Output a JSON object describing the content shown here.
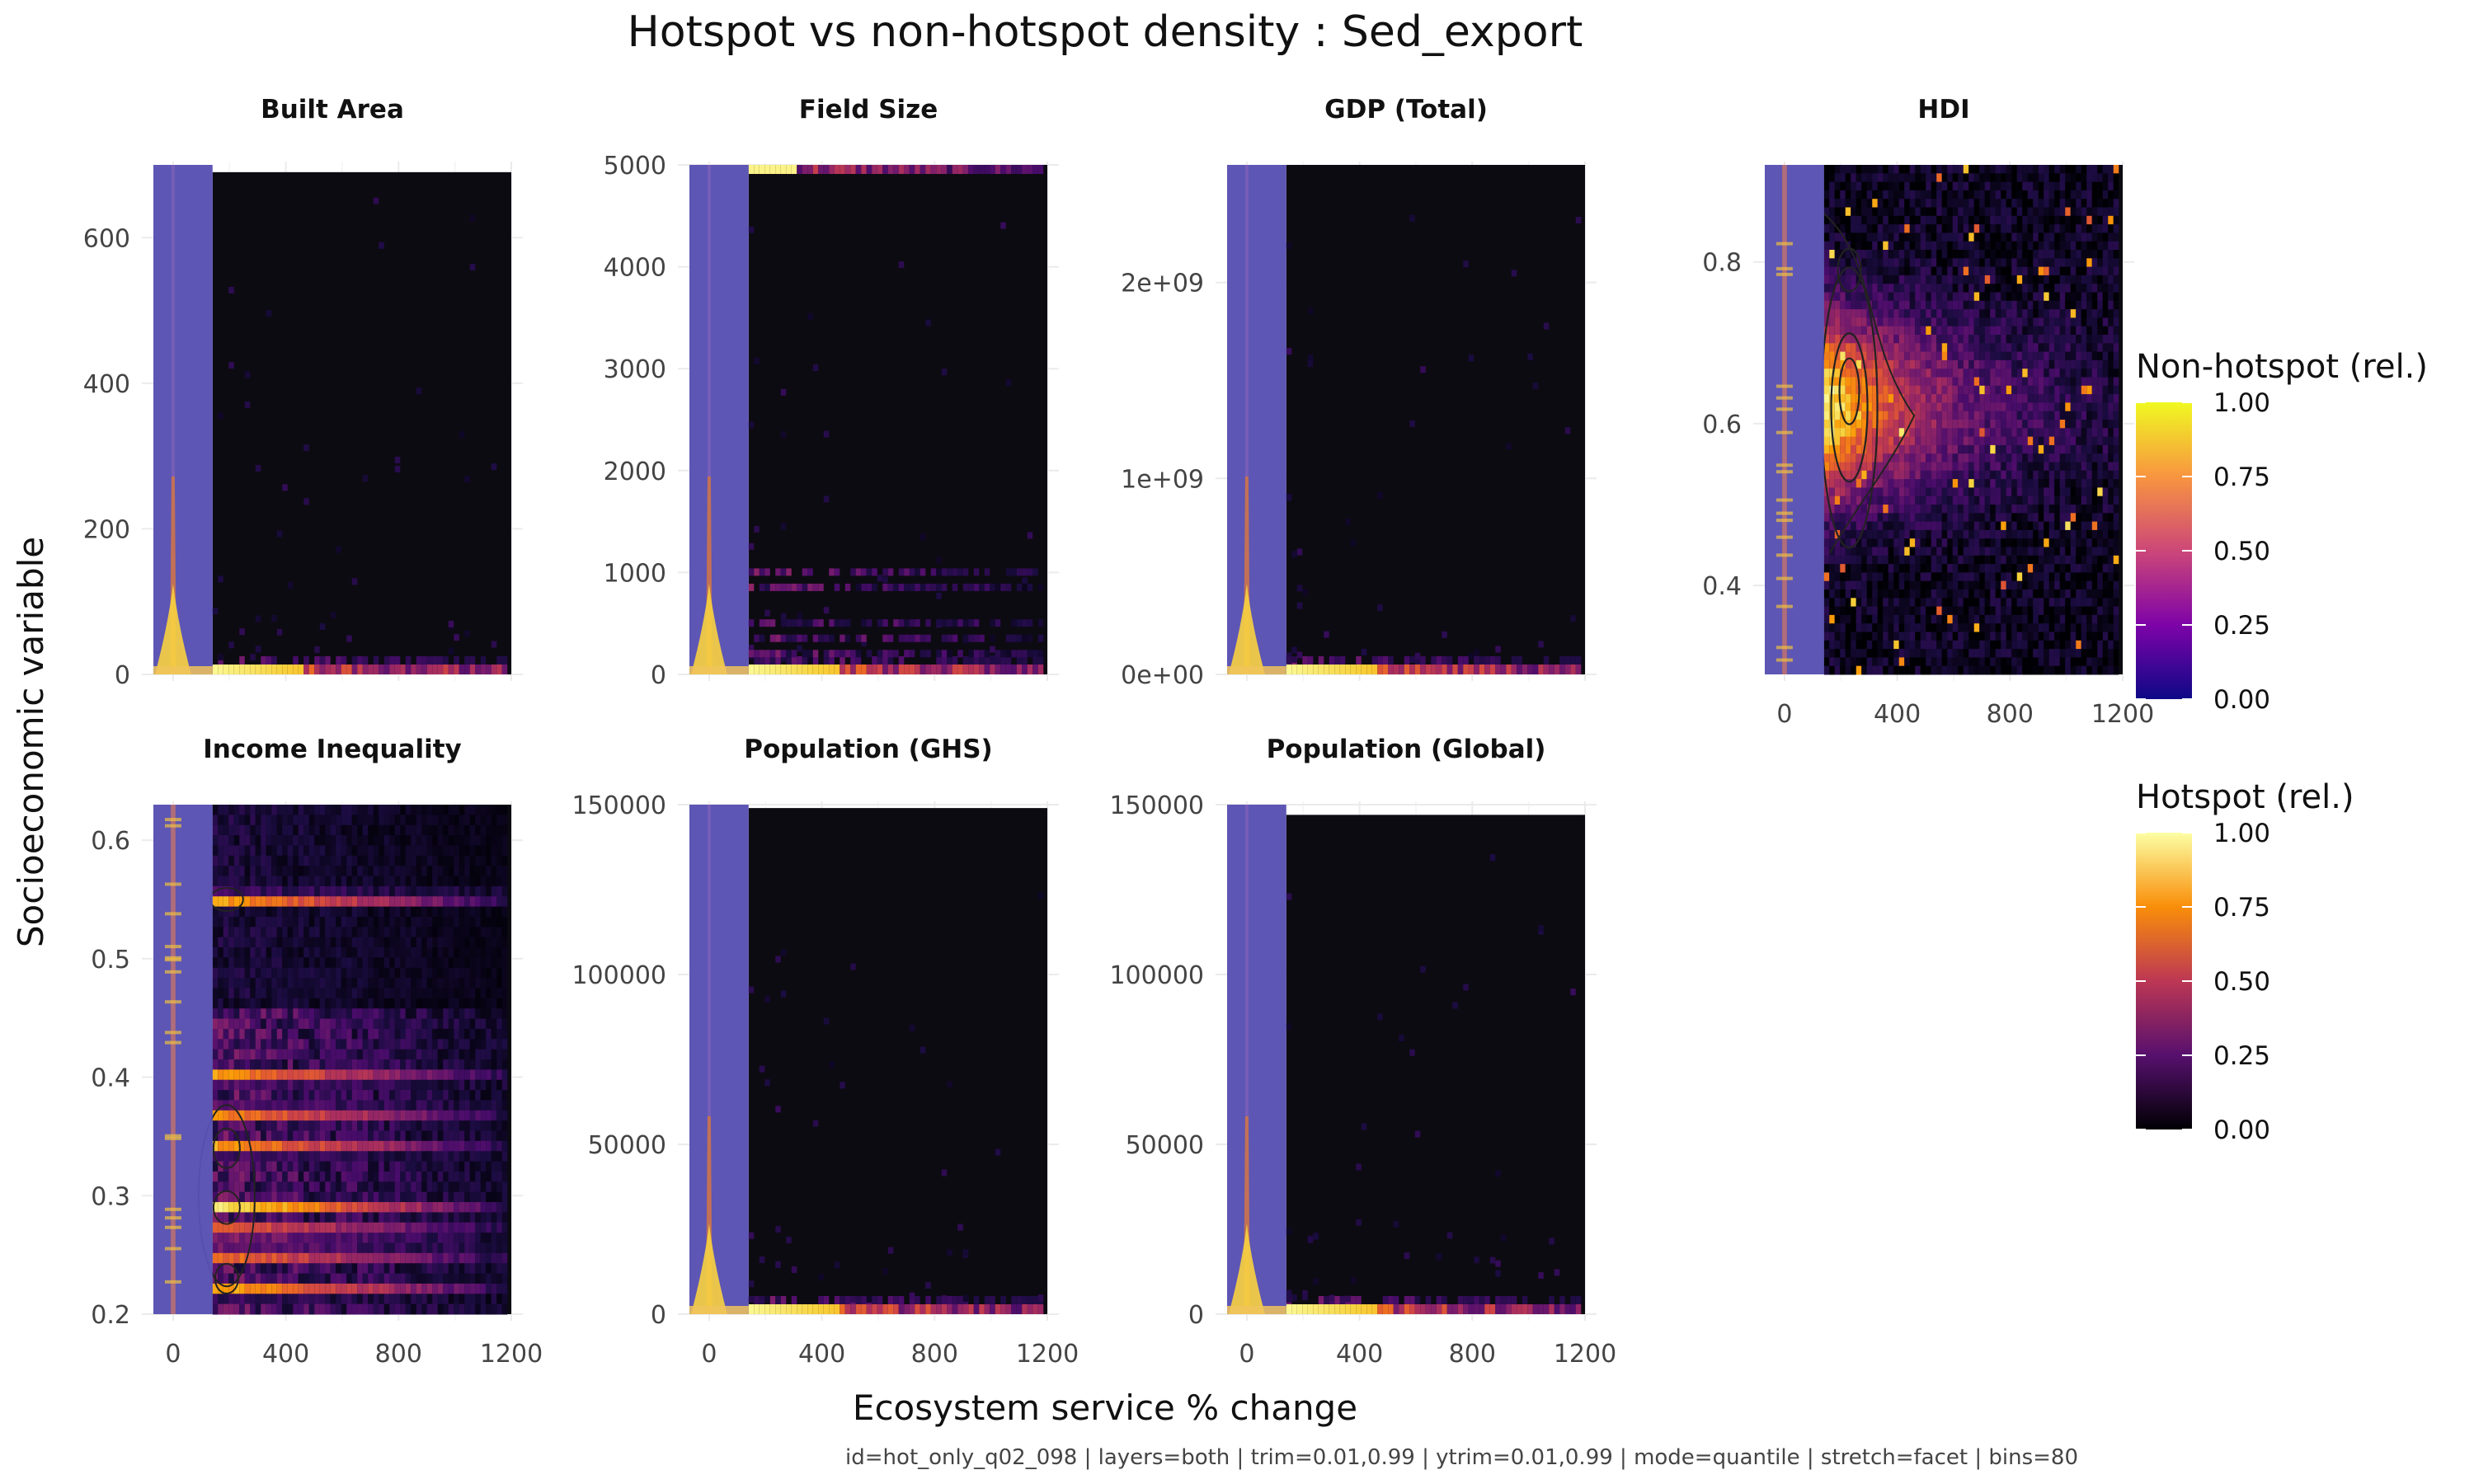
{
  "figure": {
    "title": "Hotspot vs non-hotspot density : Sed_export",
    "xlabel": "Ecosystem service % change",
    "ylabel": "Socioeconomic variable",
    "caption": "id=hot_only_q02_098 | layers=both | trim=0.01,0.99 | ytrim=0.01,0.99 | mode=quantile | stretch=facet | bins=80"
  },
  "legends": [
    {
      "title": "Non-hotspot (rel.)",
      "palette": "plasma",
      "ticks": [
        "0.00",
        "0.25",
        "0.50",
        "0.75",
        "1.00"
      ],
      "values": [
        0,
        0.25,
        0.5,
        0.75,
        1.0
      ]
    },
    {
      "title": "Hotspot (rel.)",
      "palette": "inferno",
      "ticks": [
        "0.00",
        "0.25",
        "0.50",
        "0.75",
        "1.00"
      ],
      "values": [
        0,
        0.25,
        0.5,
        0.75,
        1.0
      ]
    }
  ],
  "chart_data": [
    {
      "type": "heatmap",
      "title": "Built Area",
      "xlim": [
        -70,
        1200
      ],
      "ylim": [
        0,
        700
      ],
      "x_ticks": [
        0,
        400,
        800,
        1200
      ],
      "x_tick_labels": [
        "0",
        "400",
        "800",
        "1200"
      ],
      "y_ticks": [
        0,
        200,
        400,
        600
      ],
      "y_tick_labels": [
        "0",
        "200",
        "400",
        "600"
      ],
      "nonhot_band": [
        -70,
        140
      ],
      "hot_top": 690,
      "pattern": "bottom",
      "show_x_ticks": false
    },
    {
      "type": "heatmap",
      "title": "Field Size",
      "xlim": [
        -70,
        1200
      ],
      "ylim": [
        0,
        5000
      ],
      "x_ticks": [
        0,
        400,
        800,
        1200
      ],
      "x_tick_labels": [
        "0",
        "400",
        "800",
        "1200"
      ],
      "y_ticks": [
        0,
        1000,
        2000,
        3000,
        4000,
        5000
      ],
      "y_tick_labels": [
        "0",
        "1000",
        "2000",
        "3000",
        "4000",
        "5000"
      ],
      "nonhot_band": [
        -70,
        140
      ],
      "hot_top": 5000,
      "pattern": "field",
      "show_x_ticks": false
    },
    {
      "type": "heatmap",
      "title": "GDP (Total)",
      "xlim": [
        -70,
        1200
      ],
      "ylim": [
        0,
        2600000000
      ],
      "x_ticks": [
        0,
        400,
        800,
        1200
      ],
      "x_tick_labels": [
        "0",
        "400",
        "800",
        "1200"
      ],
      "y_ticks": [
        0,
        1000000000,
        2000000000
      ],
      "y_tick_labels": [
        "0e+00",
        "1e+09",
        "2e+09"
      ],
      "nonhot_band": [
        -70,
        140
      ],
      "hot_top": 2600000000,
      "pattern": "bottom",
      "show_x_ticks": false
    },
    {
      "type": "heatmap",
      "title": "HDI",
      "xlim": [
        -70,
        1200
      ],
      "ylim": [
        0.29,
        0.92
      ],
      "x_ticks": [
        0,
        400,
        800,
        1200
      ],
      "x_tick_labels": [
        "0",
        "400",
        "800",
        "1200"
      ],
      "y_ticks": [
        0.4,
        0.6,
        0.8
      ],
      "y_tick_labels": [
        "0.4",
        "0.6",
        "0.8"
      ],
      "nonhot_band": [
        -70,
        140
      ],
      "hot_top": 0.92,
      "pattern": "hdi",
      "show_x_ticks": true
    },
    {
      "type": "heatmap",
      "title": "Income Inequality",
      "xlim": [
        -70,
        1200
      ],
      "ylim": [
        0.2,
        0.63
      ],
      "x_ticks": [
        0,
        400,
        800,
        1200
      ],
      "x_tick_labels": [
        "0",
        "400",
        "800",
        "1200"
      ],
      "y_ticks": [
        0.2,
        0.3,
        0.4,
        0.5,
        0.6
      ],
      "y_tick_labels": [
        "0.2",
        "0.3",
        "0.4",
        "0.5",
        "0.6"
      ],
      "nonhot_band": [
        -70,
        140
      ],
      "hot_top": 0.63,
      "pattern": "income",
      "show_x_ticks": true
    },
    {
      "type": "heatmap",
      "title": "Population (GHS)",
      "xlim": [
        -70,
        1200
      ],
      "ylim": [
        0,
        150000
      ],
      "x_ticks": [
        0,
        400,
        800,
        1200
      ],
      "x_tick_labels": [
        "0",
        "400",
        "800",
        "1200"
      ],
      "y_ticks": [
        0,
        50000,
        100000,
        150000
      ],
      "y_tick_labels": [
        "0",
        "50000",
        "100000",
        "150000"
      ],
      "nonhot_band": [
        -70,
        140
      ],
      "hot_top": 149000,
      "pattern": "bottom",
      "show_x_ticks": true
    },
    {
      "type": "heatmap",
      "title": "Population (Global)",
      "xlim": [
        -70,
        1200
      ],
      "ylim": [
        0,
        150000
      ],
      "x_ticks": [
        0,
        400,
        800,
        1200
      ],
      "x_tick_labels": [
        "0",
        "400",
        "800",
        "1200"
      ],
      "y_ticks": [
        0,
        50000,
        100000,
        150000
      ],
      "y_tick_labels": [
        "0",
        "50000",
        "100000",
        "150000"
      ],
      "nonhot_band": [
        -70,
        140
      ],
      "hot_top": 147000,
      "pattern": "bottom",
      "show_x_ticks": true
    }
  ]
}
